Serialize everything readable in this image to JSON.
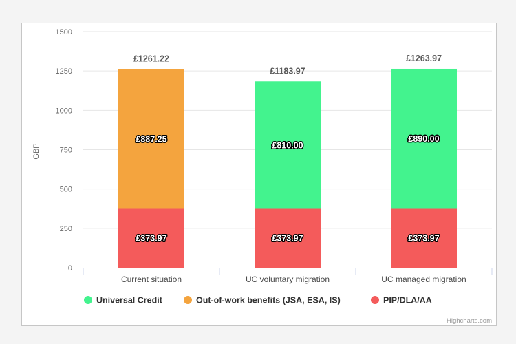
{
  "chart_data": {
    "type": "bar",
    "stacked": true,
    "categories": [
      "Current situation",
      "UC voluntary migration",
      "UC managed migration"
    ],
    "series": [
      {
        "name": "PIP/DLA/AA",
        "color": "#f45b5b",
        "values": [
          373.97,
          373.97,
          373.97
        ],
        "labels": [
          "£373.97",
          "£373.97",
          "£373.97"
        ]
      },
      {
        "name": "Out-of-work benefits (JSA, ESA, IS)",
        "color": "#f4a43e",
        "values": [
          887.25,
          0,
          0
        ],
        "labels": [
          "£887.25",
          "",
          ""
        ]
      },
      {
        "name": "Universal Credit",
        "color": "#43f38e",
        "values": [
          0,
          810.0,
          890.0
        ],
        "labels": [
          "",
          "£810.00",
          "£890.00"
        ]
      }
    ],
    "totals": [
      "£1261.22",
      "£1183.97",
      "£1263.97"
    ],
    "ylabel": "GBP",
    "ylim": [
      0,
      1500
    ],
    "yticks": [
      "0",
      "250",
      "500",
      "750",
      "1000",
      "1250",
      "1500"
    ],
    "legend": [
      {
        "name": "Universal Credit",
        "color": "#43f38e"
      },
      {
        "name": "Out-of-work benefits (JSA, ESA, IS)",
        "color": "#f4a43e"
      },
      {
        "name": "PIP/DLA/AA",
        "color": "#f45b5b"
      }
    ],
    "legend_position": "bottom",
    "grid": true,
    "credits": "Highcharts.com"
  }
}
